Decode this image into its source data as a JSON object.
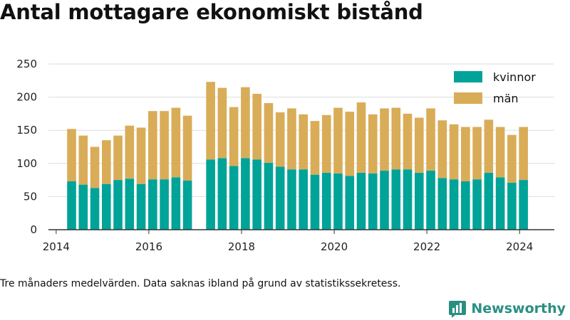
{
  "header": {
    "title": "Antal mottagare ekonomiskt bistånd"
  },
  "footer": {
    "caption": "Tre månaders medelvärden. Data saknas ibland på grund av statistikssekretess.",
    "brand": "Newsworthy",
    "brand_icon": "chart-bars-icon"
  },
  "colors": {
    "kvinnor": "#00a398",
    "man": "#d9ac58",
    "grid": "#dddddd",
    "axis": "#333333"
  },
  "chart_data": {
    "type": "bar",
    "stacked": true,
    "title": "Antal mottagare ekonomiskt bistånd",
    "xlabel": "",
    "ylabel": "",
    "ylim": [
      0,
      250
    ],
    "yticks": [
      0,
      50,
      100,
      150,
      200,
      250
    ],
    "xlim": [
      "2013-11",
      "2024-10"
    ],
    "xticks": [
      "2014",
      "2016",
      "2018",
      "2020",
      "2022",
      "2024"
    ],
    "grid": true,
    "legend": "top-right",
    "x": [
      "2014-05",
      "2014-08",
      "2014-11",
      "2015-02",
      "2015-05",
      "2015-08",
      "2015-11",
      "2016-02",
      "2016-05",
      "2016-08",
      "2016-11",
      "2017-05",
      "2017-08",
      "2017-11",
      "2018-02",
      "2018-05",
      "2018-08",
      "2018-11",
      "2019-02",
      "2019-05",
      "2019-08",
      "2019-11",
      "2020-02",
      "2020-05",
      "2020-08",
      "2020-11",
      "2021-02",
      "2021-05",
      "2021-08",
      "2021-11",
      "2022-02",
      "2022-05",
      "2022-08",
      "2022-11",
      "2023-02",
      "2023-05",
      "2023-08",
      "2023-11",
      "2024-02"
    ],
    "series": [
      {
        "name": "kvinnor",
        "values": [
          73,
          68,
          63,
          69,
          75,
          77,
          69,
          76,
          76,
          79,
          74,
          106,
          108,
          96,
          108,
          106,
          101,
          95,
          91,
          91,
          83,
          86,
          85,
          81,
          86,
          85,
          89,
          91,
          91,
          86,
          89,
          78,
          76,
          73,
          76,
          86,
          79,
          71,
          75
        ]
      },
      {
        "name": "män",
        "values": [
          79,
          74,
          62,
          66,
          67,
          80,
          85,
          103,
          103,
          105,
          98,
          117,
          106,
          89,
          107,
          99,
          90,
          82,
          92,
          83,
          81,
          87,
          99,
          97,
          106,
          89,
          94,
          93,
          84,
          83,
          94,
          87,
          83,
          82,
          79,
          80,
          76,
          72,
          80
        ]
      }
    ]
  }
}
